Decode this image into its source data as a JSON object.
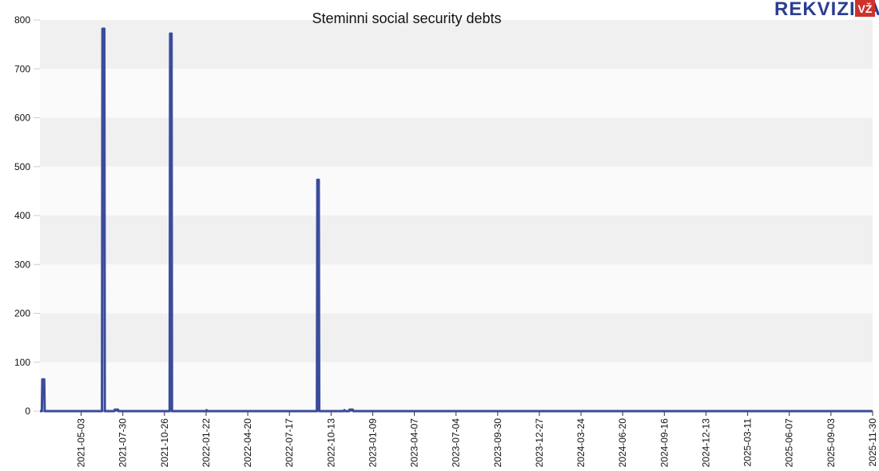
{
  "chart_data": {
    "type": "line",
    "title": "Steminni social security debts",
    "xlabel": "",
    "ylabel": "",
    "ylim": [
      0,
      800
    ],
    "y_ticks": [
      0,
      100,
      200,
      300,
      400,
      500,
      600,
      700,
      800
    ],
    "x_range": [
      "2021-02-05",
      "2025-11-30"
    ],
    "x_ticks": [
      "2021-05-03",
      "2021-07-30",
      "2021-10-26",
      "2022-01-22",
      "2022-04-20",
      "2022-07-17",
      "2022-10-13",
      "2023-01-09",
      "2023-04-07",
      "2023-07-04",
      "2023-09-30",
      "2023-12-27",
      "2024-03-24",
      "2024-06-20",
      "2024-09-16",
      "2024-12-13",
      "2025-03-11",
      "2025-06-07",
      "2025-09-03",
      "2025-11-30"
    ],
    "grid": "horizontal bands",
    "series": [
      {
        "color": "#3b4c9b",
        "points": [
          [
            "2021-02-05",
            0
          ],
          [
            "2021-02-09",
            0
          ],
          [
            "2021-02-10",
            65
          ],
          [
            "2021-02-14",
            65
          ],
          [
            "2021-02-15",
            0
          ],
          [
            "2021-06-16",
            0
          ],
          [
            "2021-06-17",
            782
          ],
          [
            "2021-06-21",
            782
          ],
          [
            "2021-06-22",
            0
          ],
          [
            "2021-07-12",
            0
          ],
          [
            "2021-07-13",
            3
          ],
          [
            "2021-07-20",
            3
          ],
          [
            "2021-07-21",
            0
          ],
          [
            "2021-11-06",
            0
          ],
          [
            "2021-11-07",
            772
          ],
          [
            "2021-11-10",
            772
          ],
          [
            "2021-11-11",
            0
          ],
          [
            "2022-01-22",
            0
          ],
          [
            "2022-01-23",
            2
          ],
          [
            "2022-01-24",
            0
          ],
          [
            "2022-09-13",
            0
          ],
          [
            "2022-09-14",
            473
          ],
          [
            "2022-09-17",
            473
          ],
          [
            "2022-09-18",
            0
          ],
          [
            "2022-11-09",
            0
          ],
          [
            "2022-11-10",
            2
          ],
          [
            "2022-11-12",
            0
          ],
          [
            "2022-11-20",
            0
          ],
          [
            "2022-11-21",
            3
          ],
          [
            "2022-11-28",
            3
          ],
          [
            "2022-11-29",
            0
          ],
          [
            "2025-11-30",
            0
          ]
        ]
      }
    ]
  },
  "branding": {
    "logo_text": "REKVIZITAI",
    "badge_text": "VŽ",
    "badge_color": "#d0312d",
    "text_color": "#2c3e90"
  },
  "colors": {
    "band_dark": "#f0f0f0",
    "band_light": "#fafafa",
    "axis": "#333333",
    "line": "#3b4c9b"
  }
}
